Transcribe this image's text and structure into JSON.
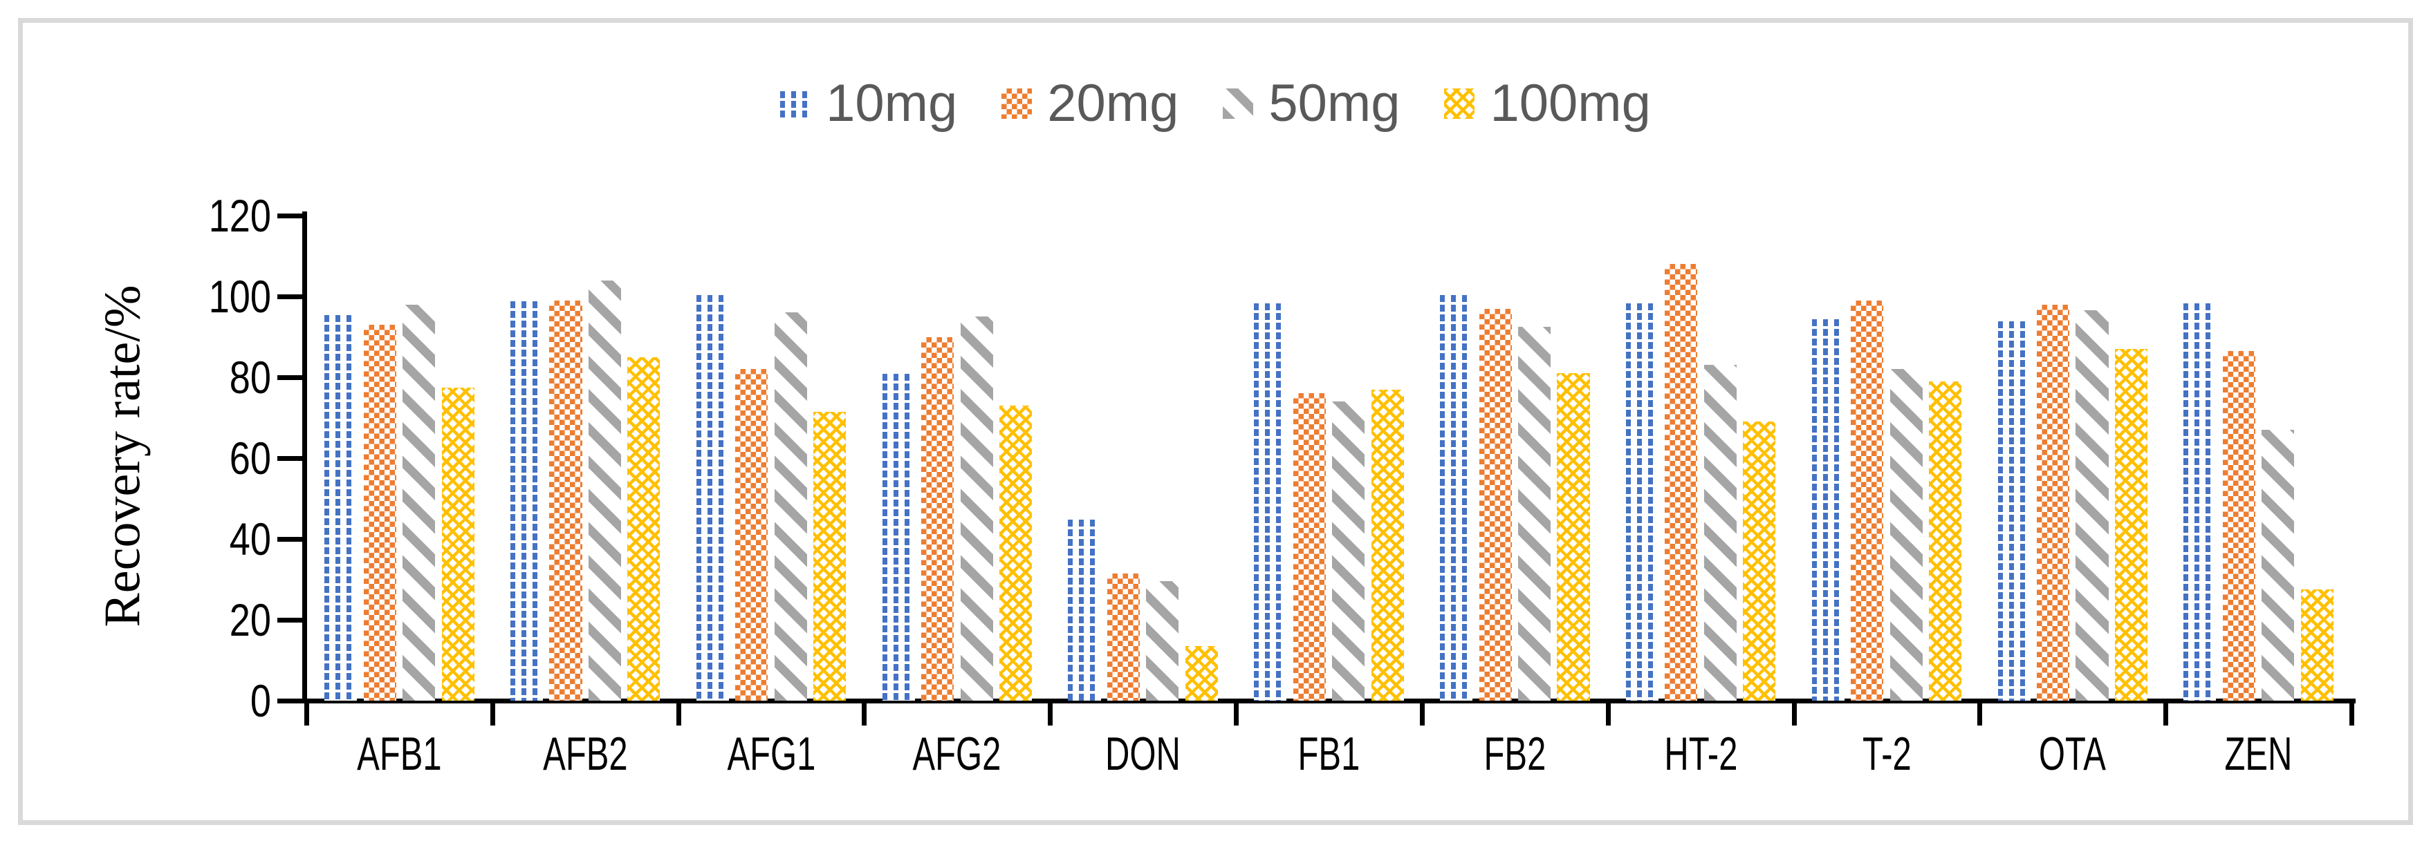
{
  "figure": {
    "background": "#ffffff",
    "border_color": "#d9d9d9"
  },
  "chart_data": {
    "type": "bar",
    "title": "",
    "xlabel": "",
    "ylabel": "Recovery rate/%",
    "ylim": [
      0,
      120
    ],
    "yticks": [
      0,
      20,
      40,
      60,
      80,
      100,
      120
    ],
    "grid": false,
    "legend_position": "top-center",
    "legend_text_color": "#595959",
    "categories": [
      "AFB1",
      "AFB2",
      "AFG1",
      "AFG2",
      "DON",
      "FB1",
      "FB2",
      "HT-2",
      "T-2",
      "OTA",
      "ZEN"
    ],
    "series": [
      {
        "name": "10mg",
        "color": "#4472C4",
        "pattern": "dotted-grid",
        "values": [
          96,
          99.5,
          101,
          81.5,
          45.5,
          99,
          101,
          99,
          95,
          94.5,
          99
        ]
      },
      {
        "name": "20mg",
        "color": "#ED7D31",
        "pattern": "checkerboard",
        "values": [
          93,
          99,
          82,
          90,
          31.5,
          76,
          97,
          108,
          99,
          98,
          86.5
        ]
      },
      {
        "name": "50mg",
        "color": "#A5A5A5",
        "pattern": "diagonal-stripe",
        "values": [
          98,
          104,
          96,
          95,
          29.5,
          74,
          92.5,
          83,
          82,
          96.5,
          67
        ]
      },
      {
        "name": "100mg",
        "color": "#FFC000",
        "pattern": "diamond-crosshatch",
        "values": [
          77.5,
          85,
          71.5,
          73,
          13.5,
          77,
          81,
          69,
          79,
          87,
          27.5
        ]
      }
    ]
  }
}
